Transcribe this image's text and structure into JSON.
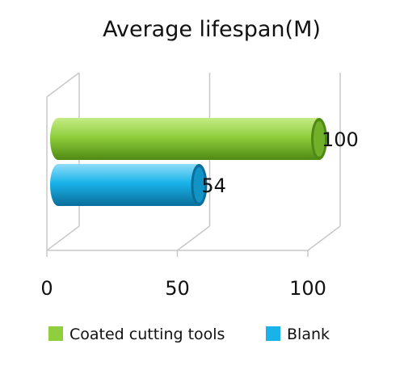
{
  "chart_data": {
    "type": "bar",
    "orientation": "horizontal",
    "style": "3d-cylinder",
    "title": "Average lifespan(M)",
    "xlabel": "",
    "ylabel": "",
    "xlim": [
      0,
      100
    ],
    "ticks": [
      0,
      50,
      100
    ],
    "grid": true,
    "legend_position": "bottom",
    "series": [
      {
        "name": "Coated cutting tools",
        "value": 100,
        "label": "100",
        "color": "#8fce3c",
        "color_dark": "#4f8a14",
        "color_light": "#c4ec86"
      },
      {
        "name": "Blank",
        "value": 54,
        "label": "54",
        "color": "#19b3ea",
        "color_dark": "#0a6d9a",
        "color_light": "#8fdcf7"
      }
    ]
  }
}
